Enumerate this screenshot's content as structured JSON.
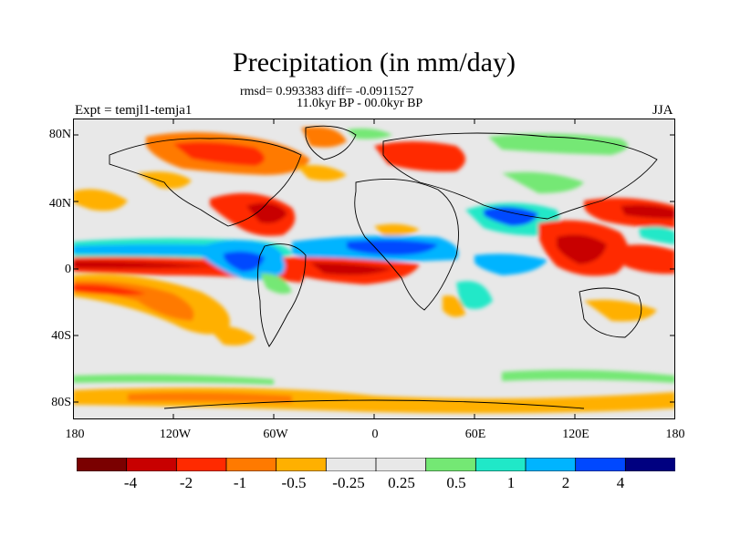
{
  "title": "Precipitation (in mm/day)",
  "stats": "rmsd= 0.993383 diff= -0.0911527",
  "period": "11.0kyr BP - 00.0kyr BP",
  "experiment": "Expt = temjl1-temja1",
  "season": "JJA",
  "axes": {
    "lat_labels": [
      "80N",
      "40N",
      "0",
      "40S",
      "80S"
    ],
    "lon_labels": [
      "180",
      "120W",
      "60W",
      "0",
      "60E",
      "120E",
      "180"
    ]
  },
  "colorbar": {
    "colors": [
      "#7a0000",
      "#c80000",
      "#ff2a00",
      "#ff7a00",
      "#ffb000",
      "#e8e8e8",
      "#e8e8e8",
      "#74e874",
      "#20e8c8",
      "#00b4ff",
      "#0048ff",
      "#000080"
    ],
    "labels": [
      "-4",
      "-2",
      "-1",
      "-0.5",
      "-0.25",
      "0.25",
      "0.5",
      "1",
      "2",
      "4"
    ]
  },
  "legend_colors": {
    "dry_strong": "#c80000",
    "dry": "#ff2a00",
    "dry_mod": "#ff7a00",
    "dry_weak": "#ffb000",
    "wet_weak": "#74e874",
    "wet_mod": "#20e8c8",
    "wet": "#00b4ff",
    "wet_strong": "#0048ff",
    "wet_extreme": "#000080",
    "neutral": "#e8e8e8"
  }
}
